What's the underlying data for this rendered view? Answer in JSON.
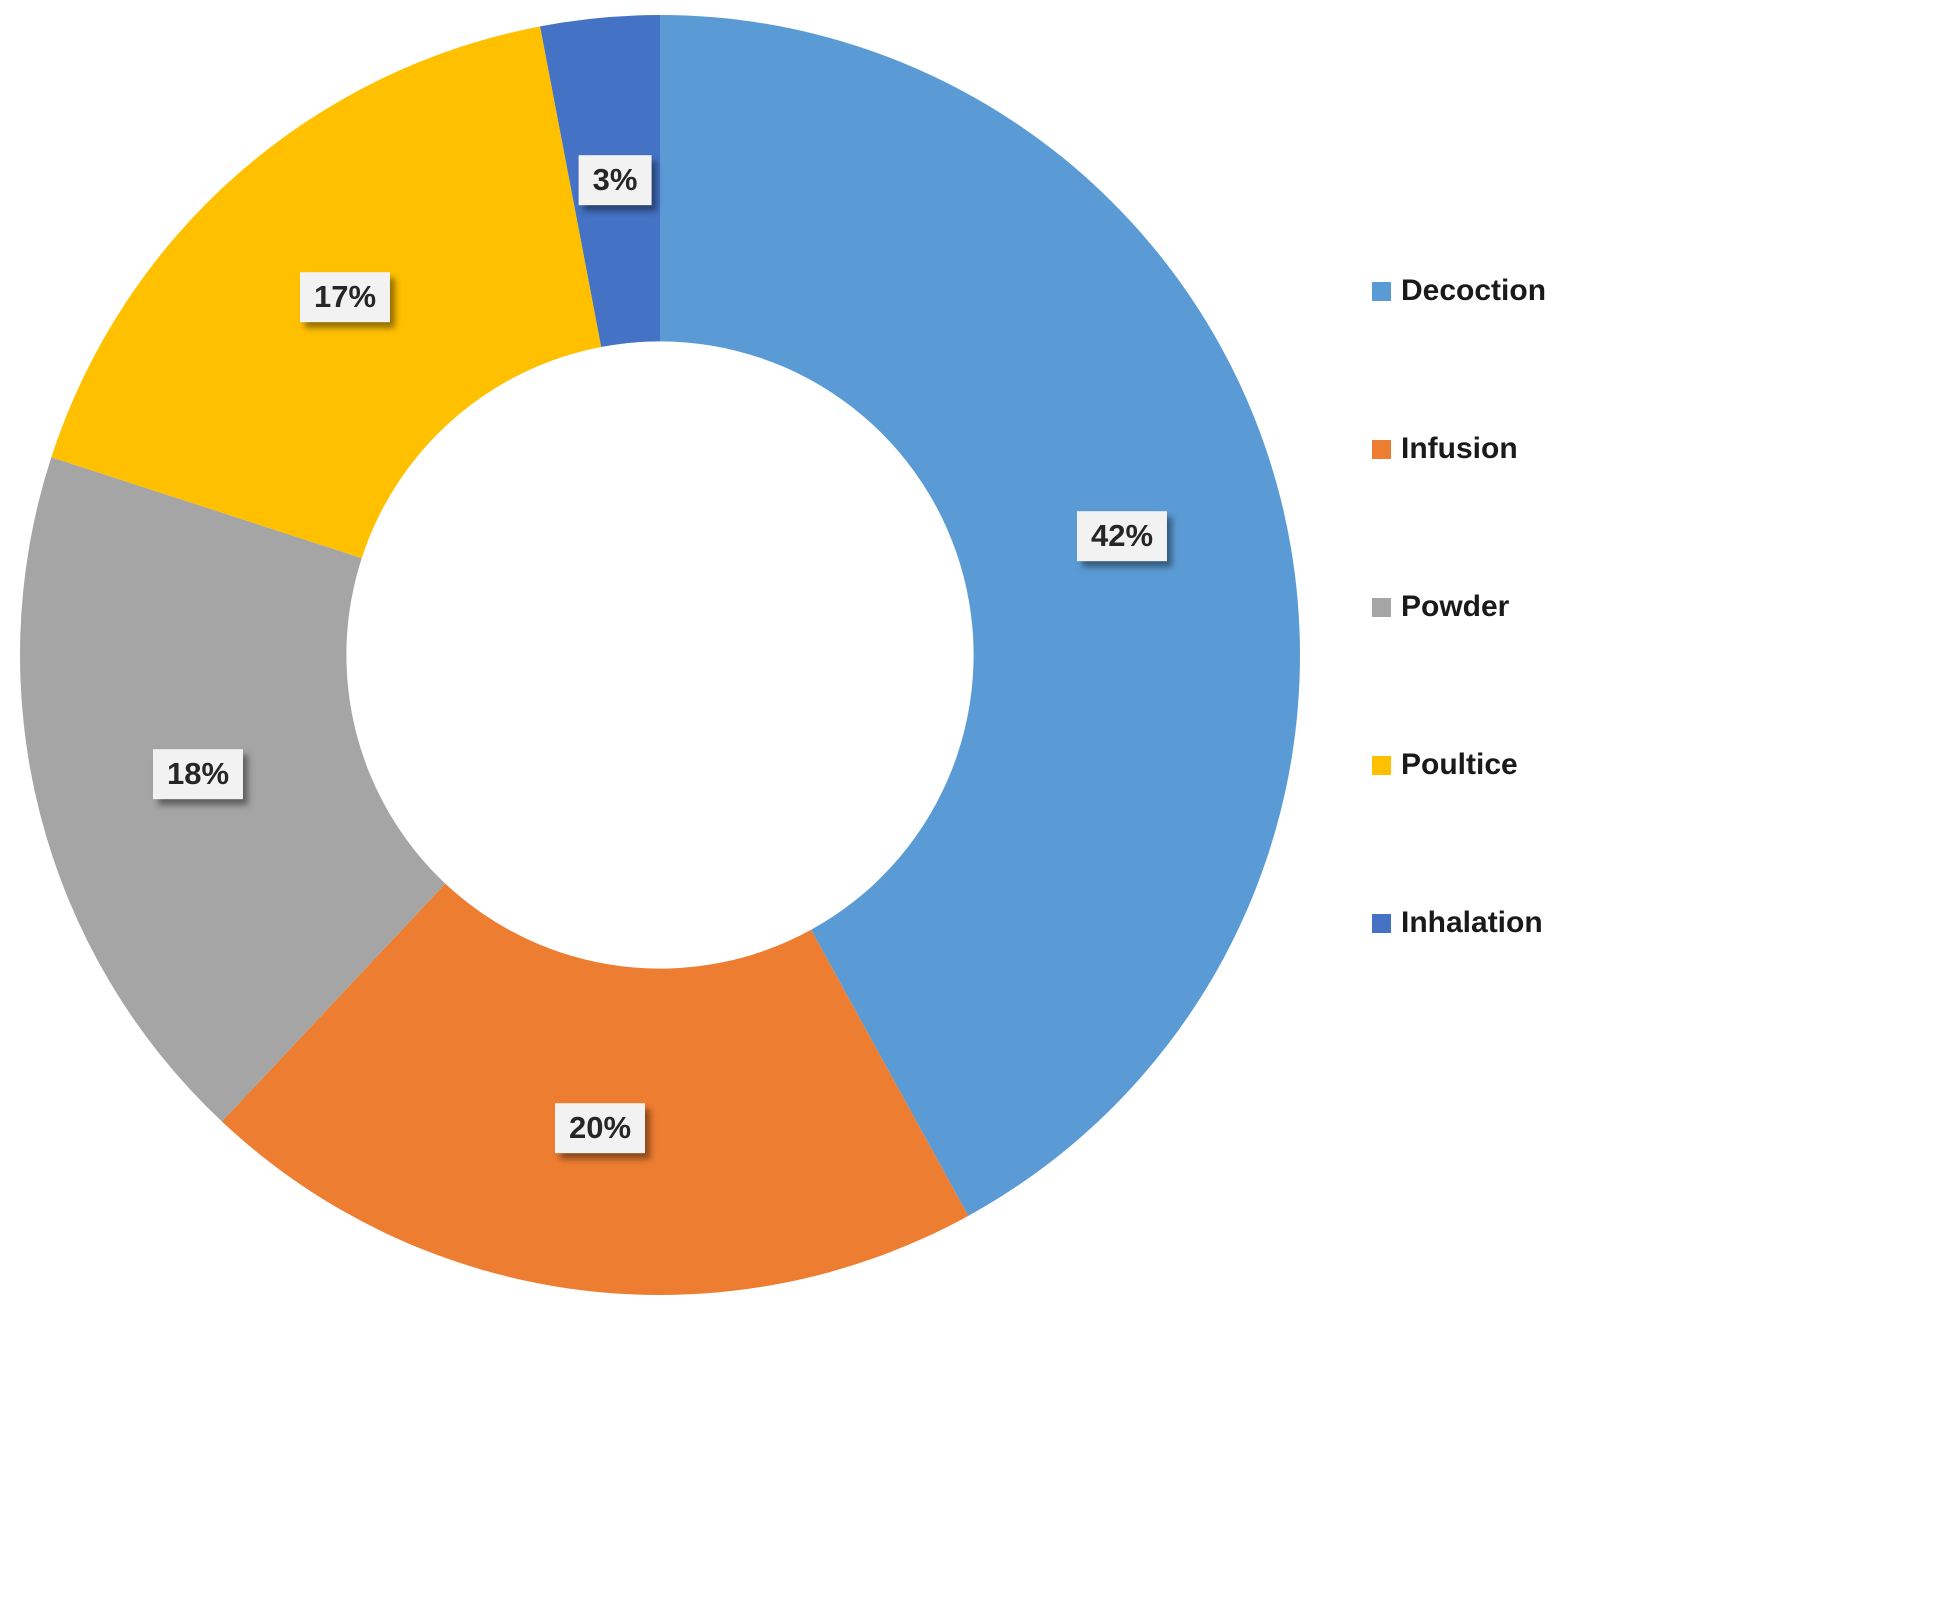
{
  "chart_data": {
    "type": "pie",
    "subtype": "donut",
    "title": "",
    "categories": [
      "Decoction",
      "Infusion",
      "Powder",
      "Poultice",
      "Inhalation"
    ],
    "values": [
      42,
      20,
      18,
      17,
      3
    ],
    "labels": [
      "42%",
      "20%",
      "18%",
      "17%",
      "3%"
    ],
    "colors": [
      "#5B9BD5",
      "#ED7D31",
      "#A5A5A5",
      "#FFC000",
      "#4472C4"
    ],
    "unit": "%",
    "start_angle_deg": 0,
    "direction": "clockwise",
    "hole_ratio": 0.49,
    "legend_position": "right",
    "label_style": {
      "background": "#F2F2F2",
      "text_color": "#262626",
      "shadow": true
    }
  },
  "legend": {
    "items": [
      {
        "label": "Decoction",
        "color": "#5B9BD5"
      },
      {
        "label": "Infusion",
        "color": "#ED7D31"
      },
      {
        "label": "Powder",
        "color": "#A5A5A5"
      },
      {
        "label": "Poultice",
        "color": "#FFC000"
      },
      {
        "label": "Inhalation",
        "color": "#4472C4"
      }
    ]
  }
}
